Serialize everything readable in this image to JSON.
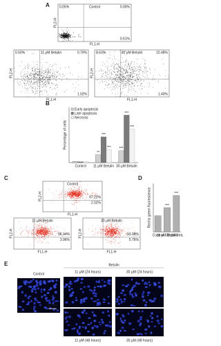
{
  "panel_labels": [
    "A",
    "B",
    "C",
    "D",
    "E"
  ],
  "panel_a": {
    "x_label": "FL1-H",
    "y_label": "FL2-H",
    "plots": [
      {
        "title": "Control",
        "upper_left": "0.05%",
        "upper_right": "0.00%",
        "lower_right": "0.51%"
      },
      {
        "title": "11 μM Betulin",
        "upper_left": "0.50%",
        "upper_right": "0.70%",
        "lower_right": "1.02%"
      },
      {
        "title": "30 μM Betulin",
        "upper_left": "8.63%",
        "upper_right": "10.48%",
        "lower_right": "1.40%"
      }
    ]
  },
  "panel_c": {
    "x_label": "FL1-H",
    "y_label": "FL2-H",
    "plots": [
      {
        "title": "Control",
        "upper_right": "97.22%",
        "lower_right": "2.02%"
      },
      {
        "title": "11 μM Betulin",
        "upper_right": "96.04%",
        "lower_right": "3.96%"
      },
      {
        "title": "30 μM Betulin",
        "upper_right": "93.98%",
        "lower_right": "5.76%"
      }
    ]
  },
  "panel_e": {
    "group": "Betulin",
    "control": "Control",
    "scale_bar": "10 μm",
    "top_labels": [
      "11 μM (24 hours)",
      "30 μM (24 hours)"
    ],
    "bottom_labels": [
      "11 μM (48 hours)",
      "30 μM (48 hours)"
    ]
  },
  "chart_data": [
    {
      "type": "bar",
      "y_label": "Percentage of cells",
      "categories": [
        "Control",
        "11 μM Betulin",
        "30 μM Betulin"
      ],
      "ylim": [
        0,
        14
      ],
      "series": [
        {
          "name": "Early apoptosis",
          "color": "#cfcfcf",
          "values": [
            0.3,
            2,
            3
          ],
          "significance": [
            null,
            "**",
            "***"
          ]
        },
        {
          "name": "Late apoptosis",
          "color": "#7a7a7a",
          "values": [
            0.2,
            6.5,
            12
          ],
          "significance": [
            null,
            "***",
            "***"
          ]
        },
        {
          "name": "Necrosis",
          "color": "#f2f2f2",
          "values": [
            0.3,
            3.3,
            8.5
          ],
          "significance": [
            null,
            "***",
            "***"
          ]
        }
      ]
    },
    {
      "type": "bar",
      "y_label": "Red to green fluorescence",
      "categories": [
        "Control",
        "11 μM Betulin",
        "30 μM Betulin"
      ],
      "ylim": [
        0,
        6
      ],
      "series": [
        {
          "name": null,
          "color": "#b0b0b0",
          "values": [
            2,
            3,
            4.5
          ],
          "significance": [
            null,
            "***",
            "***"
          ]
        }
      ]
    }
  ]
}
